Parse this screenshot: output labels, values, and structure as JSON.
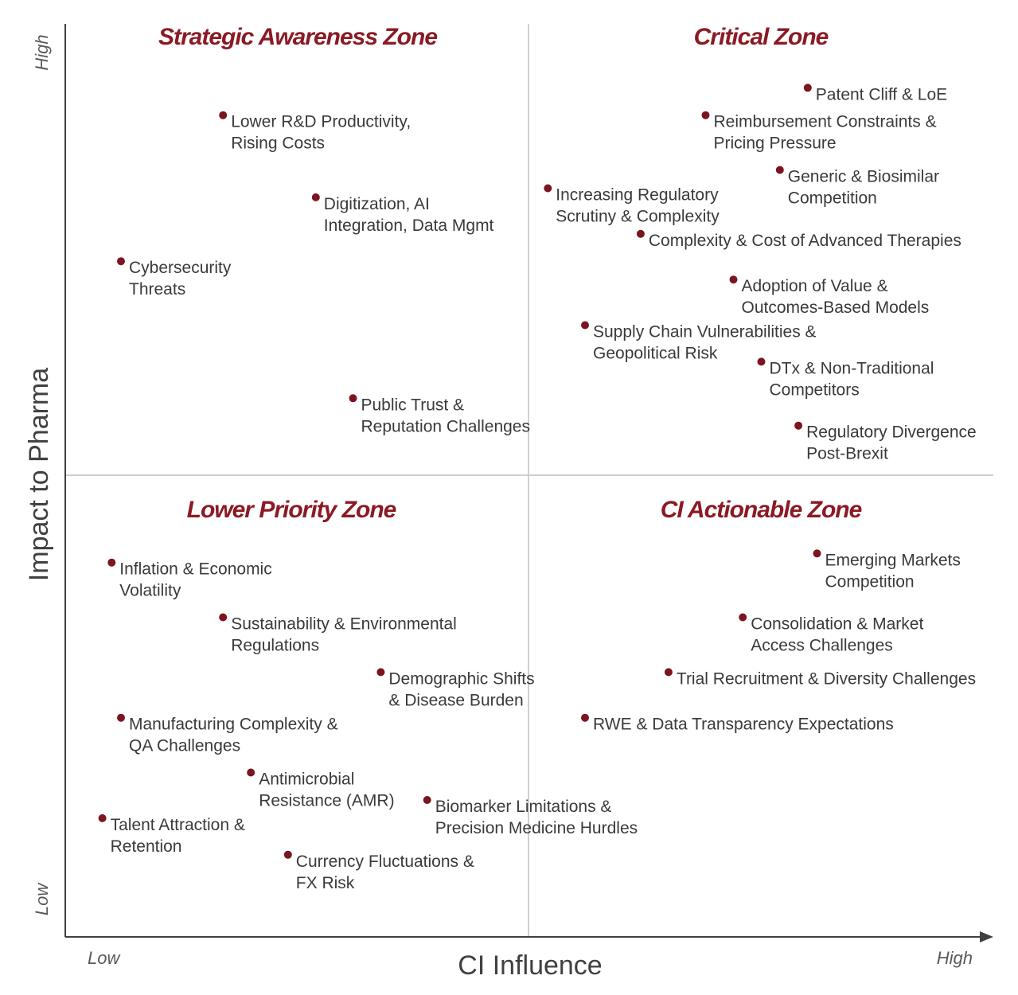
{
  "chart_data": {
    "type": "scatter",
    "xlabel": "CI Influence",
    "ylabel": "Impact to Pharma",
    "x_tick_labels": [
      "Low",
      "High"
    ],
    "y_tick_labels": [
      "Low",
      "High"
    ],
    "xlim": [
      0,
      100
    ],
    "ylim": [
      0,
      100
    ],
    "colors": {
      "point": "#7b1520",
      "zone_title": "#8b1a24",
      "axis": "#404040",
      "divider": "#d0d0d0"
    },
    "quadrants": [
      {
        "position": "top-left",
        "title": "Strategic Awareness Zone"
      },
      {
        "position": "top-right",
        "title": "Critical Zone"
      },
      {
        "position": "bottom-left",
        "title": "Lower Priority Zone"
      },
      {
        "position": "bottom-right",
        "title": "CI Actionable Zone"
      }
    ],
    "points": [
      {
        "lines": [
          "Lower R&D Productivity,",
          "Rising Costs"
        ],
        "x": 17,
        "y": 90
      },
      {
        "lines": [
          "Digitization, AI",
          "Integration, Data Mgmt"
        ],
        "x": 27,
        "y": 81
      },
      {
        "lines": [
          "Cybersecurity",
          "Threats"
        ],
        "x": 6,
        "y": 74
      },
      {
        "lines": [
          "Public Trust &",
          "Reputation Challenges"
        ],
        "x": 31,
        "y": 59
      },
      {
        "lines": [
          "Patent Cliff & LoE"
        ],
        "x": 80,
        "y": 93
      },
      {
        "lines": [
          "Reimbursement Constraints &",
          "Pricing Pressure"
        ],
        "x": 69,
        "y": 90
      },
      {
        "lines": [
          "Generic & Biosimilar",
          "Competition"
        ],
        "x": 77,
        "y": 84
      },
      {
        "lines": [
          "Increasing Regulatory",
          "Scrutiny & Complexity"
        ],
        "x": 52,
        "y": 82
      },
      {
        "lines": [
          "Complexity & Cost of Advanced Therapies"
        ],
        "x": 62,
        "y": 77
      },
      {
        "lines": [
          "Adoption of Value &",
          "Outcomes-Based Models"
        ],
        "x": 72,
        "y": 72
      },
      {
        "lines": [
          "Supply Chain Vulnerabilities &",
          "Geopolitical Risk"
        ],
        "x": 56,
        "y": 67
      },
      {
        "lines": [
          "DTx & Non-Traditional",
          "Competitors"
        ],
        "x": 75,
        "y": 63
      },
      {
        "lines": [
          "Regulatory Divergence",
          "Post-Brexit"
        ],
        "x": 79,
        "y": 56
      },
      {
        "lines": [
          "Inflation & Economic",
          "Volatility"
        ],
        "x": 5,
        "y": 41
      },
      {
        "lines": [
          "Sustainability & Environmental",
          "Regulations"
        ],
        "x": 17,
        "y": 35
      },
      {
        "lines": [
          "Demographic Shifts",
          "& Disease Burden"
        ],
        "x": 34,
        "y": 29
      },
      {
        "lines": [
          "Manufacturing Complexity &",
          "QA Challenges"
        ],
        "x": 6,
        "y": 24
      },
      {
        "lines": [
          "Antimicrobial",
          "Resistance (AMR)"
        ],
        "x": 20,
        "y": 18
      },
      {
        "lines": [
          "Biomarker Limitations &",
          "Precision Medicine Hurdles"
        ],
        "x": 39,
        "y": 15
      },
      {
        "lines": [
          "Talent Attraction &",
          "Retention"
        ],
        "x": 4,
        "y": 13
      },
      {
        "lines": [
          "Currency Fluctuations &",
          "FX Risk"
        ],
        "x": 24,
        "y": 9
      },
      {
        "lines": [
          "Emerging Markets",
          "Competition"
        ],
        "x": 81,
        "y": 42
      },
      {
        "lines": [
          "Consolidation & Market",
          "Access Challenges"
        ],
        "x": 73,
        "y": 35
      },
      {
        "lines": [
          "Trial Recruitment & Diversity Challenges"
        ],
        "x": 65,
        "y": 29
      },
      {
        "lines": [
          "RWE & Data Transparency Expectations"
        ],
        "x": 56,
        "y": 24
      }
    ]
  }
}
